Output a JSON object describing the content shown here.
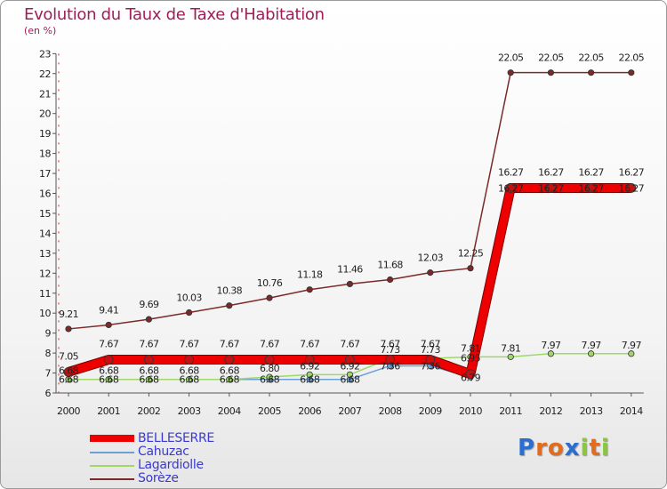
{
  "chart_data": {
    "type": "line",
    "title": "Evolution du Taux de Taxe d'Habitation",
    "ylabel": "(en %)",
    "xlabel": "",
    "x": [
      "2000",
      "2001",
      "2002",
      "2003",
      "2004",
      "2005",
      "2006",
      "2007",
      "2008",
      "2009",
      "2010",
      "2011",
      "2012",
      "2013",
      "2014"
    ],
    "ylim": [
      6,
      23
    ],
    "yticks": [
      "6",
      "7",
      "8",
      "9",
      "10",
      "11",
      "12",
      "13",
      "14",
      "15",
      "16",
      "17",
      "18",
      "19",
      "20",
      "21",
      "22",
      "23"
    ],
    "grid": false,
    "legend_position": "bottom-left",
    "series": [
      {
        "name": "BELLESERRE",
        "color": "#ee0000",
        "values": [
          7.05,
          7.67,
          7.67,
          7.67,
          7.67,
          7.67,
          7.67,
          7.67,
          7.67,
          7.67,
          6.95,
          16.27,
          16.27,
          16.27,
          16.27
        ],
        "labels": [
          "7.05",
          "7.67",
          "7.67",
          "7.67",
          "7.67",
          "7.67",
          "7.67",
          "7.67",
          "7.67",
          "7.67",
          "6.95",
          "16.27",
          "16.27",
          "16.27",
          "16.27"
        ]
      },
      {
        "name": "Cahuzac",
        "color": "#6b9fd6",
        "values": [
          6.68,
          6.68,
          6.68,
          6.68,
          6.68,
          6.68,
          6.68,
          6.68,
          7.36,
          7.36,
          6.79,
          16.27,
          16.27,
          16.27,
          16.27
        ],
        "labels": [
          "6.68",
          "6.68",
          "6.68",
          "6.68",
          "6.68",
          "6.68",
          "6.68",
          "6.68",
          "7.36",
          "7.36",
          "6.79",
          "16.27",
          "16.27",
          "16.27",
          "16.27"
        ]
      },
      {
        "name": "Lagardiolle",
        "color": "#9ed86a",
        "values": [
          6.68,
          6.68,
          6.68,
          6.68,
          6.68,
          6.8,
          6.92,
          6.92,
          7.73,
          7.73,
          7.81,
          7.81,
          7.97,
          7.97,
          7.97
        ],
        "labels": [
          "6.68",
          "6.68",
          "6.68",
          "6.68",
          "6.68",
          "6.80",
          "6.92",
          "6.92",
          "7.73",
          "7.73",
          "7.81",
          "7.81",
          "7.97",
          "7.97",
          "7.97"
        ]
      },
      {
        "name": "Sorèze",
        "color": "#7a2a2a",
        "values": [
          9.21,
          9.41,
          9.69,
          10.03,
          10.38,
          10.76,
          11.18,
          11.46,
          11.68,
          12.03,
          12.25,
          22.05,
          22.05,
          22.05,
          22.05
        ],
        "labels": [
          "9.21",
          "9.41",
          "9.69",
          "10.03",
          "10.38",
          "10.76",
          "11.18",
          "11.46",
          "11.68",
          "12.03",
          "12.25",
          "22.05",
          "22.05",
          "22.05",
          "22.05"
        ]
      }
    ]
  },
  "logo": {
    "letters": [
      "P",
      "r",
      "o",
      "x",
      "i",
      "t",
      "i"
    ],
    "colors": [
      "#2a6fcf",
      "#e36b1e",
      "#e36b1e",
      "#2a6fcf",
      "#8cc63f",
      "#e36b1e",
      "#8cc63f"
    ]
  }
}
